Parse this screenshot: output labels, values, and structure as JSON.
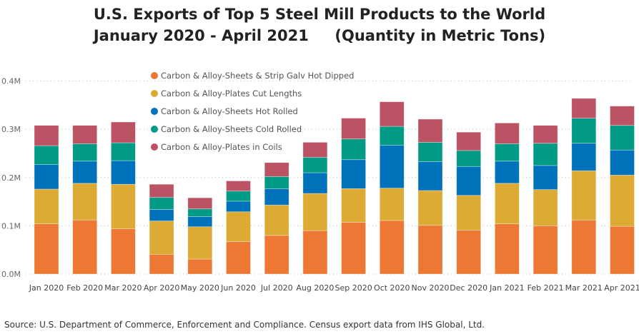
{
  "chart_data": {
    "type": "bar",
    "stacked": true,
    "title": "U.S. Exports of Top 5 Steel Mill Products to the World",
    "subtitle": "January 2020 - April 2021     (Quantity in Metric Tons)",
    "xlabel": "",
    "ylabel": "",
    "ylim": [
      0,
      400000
    ],
    "yticks": [
      0,
      100000,
      200000,
      300000,
      400000
    ],
    "ytick_labels": [
      "0.0M",
      "0.1M",
      "0.2M",
      "0.3M",
      "0.4M"
    ],
    "grid": true,
    "legend_position": "top-left",
    "categories": [
      "Jan 2020",
      "Feb 2020",
      "Mar 2020",
      "Apr 2020",
      "May 2020",
      "Jun 2020",
      "Jul 2020",
      "Aug 2020",
      "Sep 2020",
      "Oct 2020",
      "Nov 2020",
      "Dec 2020",
      "Jan 2021",
      "Feb 2021",
      "Mar 2021",
      "Apr 2021"
    ],
    "series": [
      {
        "name": "Carbon & Alloy-Sheets & Strip Galv Hot Dipped",
        "color": "#ED7834",
        "values": [
          104000,
          112000,
          94000,
          41000,
          31000,
          67000,
          80000,
          90000,
          107000,
          111000,
          101000,
          91000,
          104000,
          100000,
          112000,
          99000
        ]
      },
      {
        "name": "Carbon & Alloy-Plates Cut Lengths",
        "color": "#DDAA34",
        "values": [
          72000,
          76000,
          92000,
          69000,
          67000,
          62000,
          63000,
          77000,
          70000,
          67000,
          72000,
          72000,
          84000,
          75000,
          102000,
          106000
        ]
      },
      {
        "name": "Carbon & Alloy-Sheets Hot Rolled",
        "color": "#0072BB",
        "values": [
          51000,
          46000,
          49000,
          24000,
          21000,
          22000,
          34000,
          43000,
          60000,
          89000,
          60000,
          60000,
          46000,
          50000,
          57000,
          52000
        ]
      },
      {
        "name": "Carbon & Alloy-Sheets Cold Rolled",
        "color": "#009A85",
        "values": [
          39000,
          36000,
          37000,
          25000,
          16000,
          21000,
          25000,
          32000,
          43000,
          39000,
          40000,
          33000,
          36000,
          46000,
          52000,
          51000
        ]
      },
      {
        "name": "Carbon & Alloy-Plates in Coils",
        "color": "#BC5364",
        "values": [
          42000,
          38000,
          43000,
          27000,
          23000,
          21000,
          29000,
          31000,
          43000,
          51000,
          48000,
          38000,
          43000,
          37000,
          41000,
          40000
        ]
      }
    ]
  },
  "source": "Source: U.S. Department of Commerce, Enforcement and Compliance. Census export data from IHS Global, Ltd."
}
